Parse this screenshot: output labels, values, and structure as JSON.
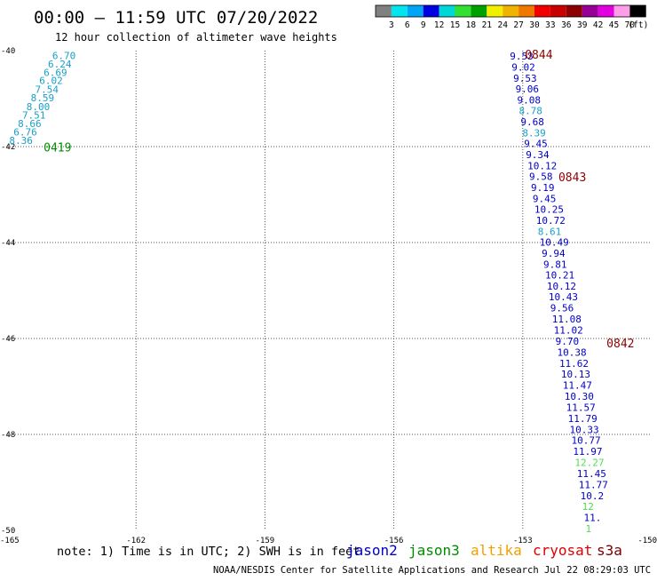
{
  "header": {
    "title": "00:00 — 11:59 UTC 07/20/2022",
    "subtitle": "12 hour collection of altimeter wave heights"
  },
  "legend_scale": {
    "unit": "(ft)",
    "colors": [
      "#808080",
      "#00e5ee",
      "#00a5f5",
      "#0000e0",
      "#00d8d8",
      "#32e032",
      "#00a000",
      "#f0f000",
      "#f0b400",
      "#f07800",
      "#f00000",
      "#c80000",
      "#8c0000",
      "#960096",
      "#e000e0",
      "#ff9ee8",
      "#000000"
    ],
    "labels": [
      "3",
      "6",
      "9",
      "12",
      "15",
      "18",
      "21",
      "24",
      "27",
      "30",
      "33",
      "36",
      "39",
      "42",
      "45",
      "70"
    ]
  },
  "footer": {
    "note": "note:  1) Time is in UTC; 2) SWH is in feet",
    "credit": "NOAA/NESDIS Center for Satellite Applications and Research    Jul 22 08:29:03 UTC 2022"
  },
  "satellites": [
    {
      "name": "jason2",
      "color": "#0000c8"
    },
    {
      "name": "jason3",
      "color": "#008c00"
    },
    {
      "name": "altika",
      "color": "#f0a000"
    },
    {
      "name": "cryosat",
      "color": "#e00000"
    },
    {
      "name": "s3a",
      "color": "#780000"
    }
  ],
  "chart_data": {
    "type": "scatter",
    "xlim": [
      -165,
      -150
    ],
    "ylim": [
      -50,
      -40
    ],
    "x_ticks": [
      "-165",
      "-162",
      "-159",
      "-156",
      "-153",
      "-150"
    ],
    "y_ticks": [
      "-40",
      "-42",
      "-44",
      "-46",
      "-48",
      "-50"
    ],
    "grid": true,
    "tracks": [
      {
        "time_label": "0419",
        "time_color": "#008c00",
        "label_at": [
          -164.15,
          -41.95
        ],
        "points": [
          {
            "lon": -163.95,
            "lat": -40.03,
            "swh": "6.70",
            "color": "#1aa0c8"
          },
          {
            "lon": -164.05,
            "lat": -40.2,
            "swh": "6.24",
            "color": "#1aa0c8"
          },
          {
            "lon": -164.15,
            "lat": -40.38,
            "swh": "6.69",
            "color": "#1aa0c8"
          },
          {
            "lon": -164.25,
            "lat": -40.55,
            "swh": "6.02",
            "color": "#1aa0c8"
          },
          {
            "lon": -164.35,
            "lat": -40.73,
            "swh": "7.54",
            "color": "#1aa0c8"
          },
          {
            "lon": -164.45,
            "lat": -40.91,
            "swh": "8.59",
            "color": "#1aa0c8"
          },
          {
            "lon": -164.55,
            "lat": -41.09,
            "swh": "8.00",
            "color": "#1aa0c8"
          },
          {
            "lon": -164.65,
            "lat": -41.27,
            "swh": "7.51",
            "color": "#1aa0c8"
          },
          {
            "lon": -164.75,
            "lat": -41.44,
            "swh": "8.66",
            "color": "#1aa0c8"
          },
          {
            "lon": -164.85,
            "lat": -41.62,
            "swh": "6.76",
            "color": "#1aa0c8"
          },
          {
            "lon": -164.95,
            "lat": -41.8,
            "swh": "8.36",
            "color": "#1aa0c8"
          }
        ]
      },
      {
        "time_label": "0844",
        "time_color": "#8c0000",
        "label_at": [
          -152.95,
          -40.02
        ],
        "points": [
          {
            "lon": -153.3,
            "lat": -40.04,
            "swh": "9.53",
            "color": "#0000c8"
          },
          {
            "lon": -153.26,
            "lat": -40.27,
            "swh": "9.02",
            "color": "#0000c8"
          },
          {
            "lon": -153.22,
            "lat": -40.5,
            "swh": "9.53",
            "color": "#0000c8"
          },
          {
            "lon": -153.17,
            "lat": -40.72,
            "swh": "9.06",
            "color": "#0000c8"
          },
          {
            "lon": -153.13,
            "lat": -40.95,
            "swh": "9.08",
            "color": "#0000c8"
          },
          {
            "lon": -153.09,
            "lat": -41.18,
            "swh": "8.78",
            "color": "#1aa0c8"
          },
          {
            "lon": -153.05,
            "lat": -41.41,
            "swh": "9.68",
            "color": "#0000c8"
          },
          {
            "lon": -153.01,
            "lat": -41.64,
            "swh": "8.39",
            "color": "#1aa0c8"
          }
        ]
      },
      {
        "time_label": "0843",
        "time_color": "#8c0000",
        "label_at": [
          -152.17,
          -42.57
        ],
        "points": [
          {
            "lon": -152.97,
            "lat": -41.86,
            "swh": "9.45",
            "color": "#0000c8"
          },
          {
            "lon": -152.93,
            "lat": -42.09,
            "swh": "9.34",
            "color": "#0000c8"
          },
          {
            "lon": -152.89,
            "lat": -42.32,
            "swh": "10.12",
            "color": "#0000c8"
          },
          {
            "lon": -152.85,
            "lat": -42.55,
            "swh": "9.58",
            "color": "#0000c8"
          },
          {
            "lon": -152.81,
            "lat": -42.78,
            "swh": "9.19",
            "color": "#0000c8"
          },
          {
            "lon": -152.77,
            "lat": -43.01,
            "swh": "9.45",
            "color": "#0000c8"
          },
          {
            "lon": -152.73,
            "lat": -43.23,
            "swh": "10.25",
            "color": "#0000c8"
          },
          {
            "lon": -152.69,
            "lat": -43.46,
            "swh": "10.72",
            "color": "#0000c8"
          },
          {
            "lon": -152.65,
            "lat": -43.69,
            "swh": "8.61",
            "color": "#1aa0c8"
          },
          {
            "lon": -152.61,
            "lat": -43.92,
            "swh": "10.49",
            "color": "#0000c8"
          },
          {
            "lon": -152.56,
            "lat": -44.15,
            "swh": "9.94",
            "color": "#0000c8"
          },
          {
            "lon": -152.52,
            "lat": -44.38,
            "swh": "9.81",
            "color": "#0000c8"
          },
          {
            "lon": -152.48,
            "lat": -44.6,
            "swh": "10.21",
            "color": "#0000c8"
          },
          {
            "lon": -152.44,
            "lat": -44.83,
            "swh": "10.12",
            "color": "#0000c8"
          },
          {
            "lon": -152.4,
            "lat": -45.06,
            "swh": "10.43",
            "color": "#0000c8"
          },
          {
            "lon": -152.36,
            "lat": -45.29,
            "swh": "9.56",
            "color": "#0000c8"
          },
          {
            "lon": -152.32,
            "lat": -45.52,
            "swh": "11.08",
            "color": "#0000c8"
          },
          {
            "lon": -152.28,
            "lat": -45.75,
            "swh": "11.02",
            "color": "#0000c8"
          }
        ]
      },
      {
        "time_label": "0842",
        "time_color": "#8c0000",
        "label_at": [
          -151.05,
          -46.04
        ],
        "points": [
          {
            "lon": -152.24,
            "lat": -45.98,
            "swh": "9.70",
            "color": "#0000c8"
          },
          {
            "lon": -152.2,
            "lat": -46.21,
            "swh": "10.38",
            "color": "#0000c8"
          },
          {
            "lon": -152.15,
            "lat": -46.44,
            "swh": "11.62",
            "color": "#0000c8"
          },
          {
            "lon": -152.11,
            "lat": -46.67,
            "swh": "10.13",
            "color": "#0000c8"
          },
          {
            "lon": -152.07,
            "lat": -46.9,
            "swh": "11.47",
            "color": "#0000c8"
          },
          {
            "lon": -152.03,
            "lat": -47.13,
            "swh": "10.30",
            "color": "#0000c8"
          },
          {
            "lon": -151.99,
            "lat": -47.36,
            "swh": "11.57",
            "color": "#0000c8"
          },
          {
            "lon": -151.95,
            "lat": -47.59,
            "swh": "11.79",
            "color": "#0000c8"
          },
          {
            "lon": -151.91,
            "lat": -47.82,
            "swh": "10.33",
            "color": "#0000c8"
          },
          {
            "lon": -151.87,
            "lat": -48.05,
            "swh": "10.77",
            "color": "#0000c8"
          },
          {
            "lon": -151.83,
            "lat": -48.28,
            "swh": "11.97",
            "color": "#0000c8"
          },
          {
            "lon": -151.79,
            "lat": -48.51,
            "swh": "12.27",
            "color": "#50dc50"
          },
          {
            "lon": -151.74,
            "lat": -48.74,
            "swh": "11.45",
            "color": "#0000c8"
          },
          {
            "lon": -151.7,
            "lat": -48.97,
            "swh": "11.77",
            "color": "#0000c8"
          },
          {
            "lon": -151.66,
            "lat": -49.2,
            "swh": "10.2",
            "color": "#0000c8"
          },
          {
            "lon": -151.62,
            "lat": -49.43,
            "swh": "12",
            "color": "#50dc50"
          },
          {
            "lon": -151.58,
            "lat": -49.66,
            "swh": "11.",
            "color": "#0000c8"
          },
          {
            "lon": -151.54,
            "lat": -49.89,
            "swh": "1",
            "color": "#50dc50"
          }
        ]
      }
    ]
  }
}
